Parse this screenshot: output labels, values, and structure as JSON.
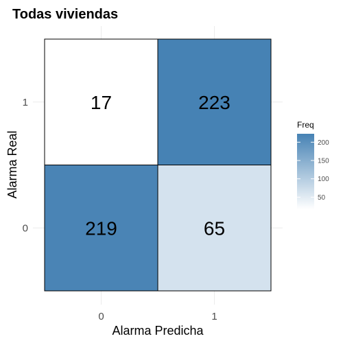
{
  "chart_data": {
    "type": "heatmap",
    "title": "Todas viviendas",
    "xlabel": "Alarma Predicha",
    "ylabel": "Alarma Real",
    "x_categories": [
      "0",
      "1"
    ],
    "y_categories": [
      "0",
      "1"
    ],
    "cells": [
      {
        "x": "0",
        "y": "1",
        "value": 17
      },
      {
        "x": "1",
        "y": "1",
        "value": 223
      },
      {
        "x": "0",
        "y": "0",
        "value": 219
      },
      {
        "x": "1",
        "y": "0",
        "value": 65
      }
    ],
    "legend": {
      "title": "Freq",
      "ticks": [
        50,
        100,
        150,
        200
      ],
      "range": [
        17,
        223
      ],
      "low_color": "#ffffff",
      "high_color": "#4682b4"
    },
    "grid": true
  }
}
